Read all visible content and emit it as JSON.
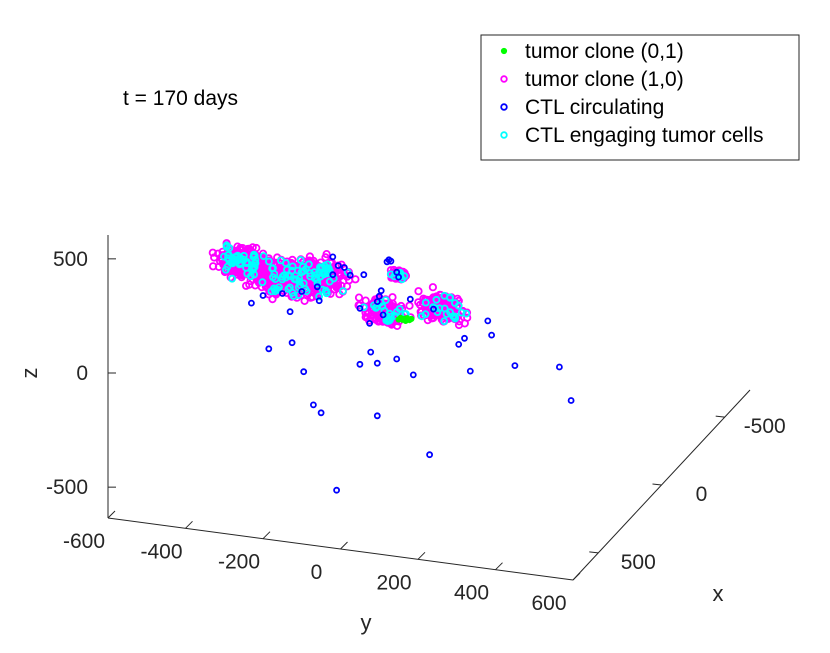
{
  "chart_data": {
    "type": "scatter",
    "dimensions": 3,
    "annotation": "t  = 170 days",
    "axes": {
      "x": {
        "label": "x",
        "ticks": [
          -500,
          0,
          500
        ],
        "tick_labels": [
          "-500",
          "0",
          "500"
        ],
        "range": [
          -700,
          700
        ]
      },
      "y": {
        "label": "y",
        "ticks": [
          -600,
          -400,
          -200,
          0,
          200,
          400,
          600
        ],
        "tick_labels": [
          "-600",
          "-400",
          "-200",
          "0",
          "200",
          "400",
          "600"
        ],
        "range": [
          -600,
          600
        ]
      },
      "z": {
        "label": "z",
        "ticks": [
          -500,
          0,
          500
        ],
        "tick_labels": [
          "-500",
          "0",
          "500"
        ],
        "range": [
          -650,
          650
        ]
      }
    },
    "legend": {
      "position": "top-right",
      "entries": [
        {
          "name": "tumor clone (0,1)",
          "color": "#00ff00",
          "marker": "filled-dot"
        },
        {
          "name": "tumor clone (1,0)",
          "color": "#ff00ff",
          "marker": "circle"
        },
        {
          "name": "CTL circulating",
          "color": "#0000ff",
          "marker": "circle"
        },
        {
          "name": "CTL engaging tumor cells",
          "color": "#00ffff",
          "marker": "circle"
        }
      ]
    },
    "series": [
      {
        "name": "tumor clone (1,0)",
        "color": "#ff00ff",
        "clusters": [
          {
            "y": -250,
            "z": 560,
            "spread_y": 60,
            "spread_z": 60,
            "count": 280
          },
          {
            "y": -130,
            "z": 520,
            "spread_y": 90,
            "spread_z": 85,
            "count": 330
          },
          {
            "y": -40,
            "z": 560,
            "spread_y": 60,
            "spread_z": 60,
            "count": 180
          },
          {
            "y": 150,
            "z": 600,
            "spread_y": 18,
            "spread_z": 18,
            "count": 60
          },
          {
            "y": 110,
            "z": 430,
            "spread_y": 50,
            "spread_z": 55,
            "count": 140
          },
          {
            "y": 260,
            "z": 480,
            "spread_y": 60,
            "spread_z": 60,
            "count": 170
          }
        ]
      },
      {
        "name": "CTL engaging tumor cells",
        "color": "#00ffff",
        "count": 180
      },
      {
        "name": "tumor clone (0,1)",
        "color": "#00ff00",
        "points": [
          {
            "y": 165,
            "z": 410
          },
          {
            "y": 172,
            "z": 415
          },
          {
            "y": 160,
            "z": 405
          },
          {
            "y": 178,
            "z": 408
          },
          {
            "y": 168,
            "z": 402
          },
          {
            "y": 155,
            "z": 412
          },
          {
            "y": 183,
            "z": 414
          },
          {
            "y": 150,
            "z": 404
          }
        ]
      },
      {
        "name": "CTL circulating",
        "color": "#0000ff",
        "points": [
          {
            "y": -20,
            "z": 640
          },
          {
            "y": 10,
            "z": 600
          },
          {
            "y": 25,
            "z": 570
          },
          {
            "y": 60,
            "z": 580
          },
          {
            "y": 120,
            "z": 650
          },
          {
            "y": 125,
            "z": 660
          },
          {
            "y": 130,
            "z": 655
          },
          {
            "y": 145,
            "z": 610
          },
          {
            "y": 105,
            "z": 520
          },
          {
            "y": 100,
            "z": 495
          },
          {
            "y": 95,
            "z": 470
          },
          {
            "y": -60,
            "z": 500
          },
          {
            "y": -100,
            "z": 470
          },
          {
            "y": -150,
            "z": 450
          },
          {
            "y": -200,
            "z": 430
          },
          {
            "y": -230,
            "z": 390
          },
          {
            "y": -130,
            "z": 375
          },
          {
            "y": -55,
            "z": 440
          },
          {
            "y": 50,
            "z": 430
          },
          {
            "y": 75,
            "z": 370
          },
          {
            "y": 110,
            "z": 415
          },
          {
            "y": 180,
            "z": 500
          },
          {
            "y": 240,
            "z": 470
          },
          {
            "y": 320,
            "z": 360
          },
          {
            "y": 380,
            "z": 450
          },
          {
            "y": 390,
            "z": 390
          },
          {
            "y": -6,
            "z": 605
          },
          {
            "y": -20,
            "z": 562
          },
          {
            "y": 150,
            "z": 590
          },
          {
            "y": -185,
            "z": 200
          },
          {
            "y": -125,
            "z": 240
          },
          {
            "y": -95,
            "z": 120
          },
          {
            "y": -70,
            "z": -20
          },
          {
            "y": -50,
            "z": -50
          },
          {
            "y": 50,
            "z": 185
          },
          {
            "y": 95,
            "z": 200
          },
          {
            "y": 145,
            "z": 230
          },
          {
            "y": 95,
            "z": -30
          },
          {
            "y": 230,
            "z": -170
          },
          {
            "y": 335,
            "z": 220
          },
          {
            "y": 450,
            "z": 270
          },
          {
            "y": 565,
            "z": 290
          },
          {
            "y": 595,
            "z": 150
          },
          {
            "y": -10,
            "z": -380
          },
          {
            "y": 188,
            "z": 170
          },
          {
            "y": 305,
            "z": 330
          },
          {
            "y": 78,
            "z": 245
          }
        ]
      }
    ]
  }
}
